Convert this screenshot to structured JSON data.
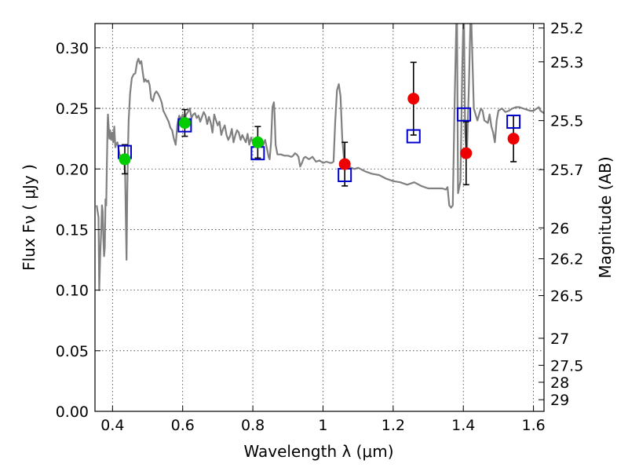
{
  "chart_data": {
    "type": "scatter",
    "xlabel": "Wavelength  λ (μm)",
    "ylabel_left": "Flux  Fν  ( μJy )",
    "ylabel_right": "Magnitude (AB)",
    "xlim": [
      0.35,
      1.63
    ],
    "ylim": [
      0.0,
      0.32
    ],
    "grid": true,
    "x_ticks": [
      {
        "value": 0.4,
        "label": "0.4"
      },
      {
        "value": 0.6,
        "label": "0.6"
      },
      {
        "value": 0.8,
        "label": "0.8"
      },
      {
        "value": 1.0,
        "label": "1"
      },
      {
        "value": 1.2,
        "label": "1.2"
      },
      {
        "value": 1.4,
        "label": "1.4"
      },
      {
        "value": 1.6,
        "label": "1.6"
      }
    ],
    "y_ticks": [
      {
        "value": 0.0,
        "label": "0.00"
      },
      {
        "value": 0.05,
        "label": "0.05"
      },
      {
        "value": 0.1,
        "label": "0.10"
      },
      {
        "value": 0.15,
        "label": "0.15"
      },
      {
        "value": 0.2,
        "label": "0.20"
      },
      {
        "value": 0.25,
        "label": "0.25"
      },
      {
        "value": 0.3,
        "label": "0.30"
      }
    ],
    "right_ticks": [
      {
        "label": "25.2",
        "flux": 0.3163
      },
      {
        "label": "25.3",
        "flux": 0.2884
      },
      {
        "label": "25.5",
        "flux": 0.2399
      },
      {
        "label": "25.7",
        "flux": 0.1995
      },
      {
        "label": "26",
        "flux": 0.1514
      },
      {
        "label": "26.2",
        "flux": 0.1259
      },
      {
        "label": "26.5",
        "flux": 0.0955
      },
      {
        "label": "27",
        "flux": 0.0603
      },
      {
        "label": "27.5",
        "flux": 0.038
      },
      {
        "label": "28",
        "flux": 0.024
      },
      {
        "label": "29",
        "flux": 0.0096
      }
    ],
    "model_spectrum": {
      "color": "#808080",
      "points": [
        [
          0.355,
          0.17
        ],
        [
          0.36,
          0.16
        ],
        [
          0.362,
          0.1
        ],
        [
          0.365,
          0.13
        ],
        [
          0.368,
          0.15
        ],
        [
          0.37,
          0.17
        ],
        [
          0.372,
          0.165
        ],
        [
          0.374,
          0.142
        ],
        [
          0.376,
          0.128
        ],
        [
          0.378,
          0.135
        ],
        [
          0.38,
          0.175
        ],
        [
          0.382,
          0.17
        ],
        [
          0.384,
          0.205
        ],
        [
          0.386,
          0.238
        ],
        [
          0.387,
          0.245
        ],
        [
          0.389,
          0.235
        ],
        [
          0.391,
          0.225
        ],
        [
          0.393,
          0.232
        ],
        [
          0.396,
          0.224
        ],
        [
          0.399,
          0.23
        ],
        [
          0.402,
          0.222
        ],
        [
          0.405,
          0.235
        ],
        [
          0.408,
          0.218
        ],
        [
          0.411,
          0.221
        ],
        [
          0.414,
          0.222
        ],
        [
          0.417,
          0.217
        ],
        [
          0.42,
          0.212
        ],
        [
          0.425,
          0.21
        ],
        [
          0.43,
          0.21
        ],
        [
          0.433,
          0.207
        ],
        [
          0.436,
          0.196
        ],
        [
          0.438,
          0.16
        ],
        [
          0.44,
          0.125
        ],
        [
          0.442,
          0.18
        ],
        [
          0.444,
          0.215
        ],
        [
          0.446,
          0.24
        ],
        [
          0.45,
          0.262
        ],
        [
          0.455,
          0.275
        ],
        [
          0.46,
          0.278
        ],
        [
          0.465,
          0.279
        ],
        [
          0.47,
          0.288
        ],
        [
          0.474,
          0.291
        ],
        [
          0.478,
          0.287
        ],
        [
          0.482,
          0.289
        ],
        [
          0.486,
          0.28
        ],
        [
          0.49,
          0.272
        ],
        [
          0.494,
          0.274
        ],
        [
          0.498,
          0.272
        ],
        [
          0.502,
          0.273
        ],
        [
          0.506,
          0.269
        ],
        [
          0.51,
          0.258
        ],
        [
          0.515,
          0.256
        ],
        [
          0.52,
          0.262
        ],
        [
          0.525,
          0.264
        ],
        [
          0.53,
          0.262
        ],
        [
          0.535,
          0.259
        ],
        [
          0.54,
          0.255
        ],
        [
          0.545,
          0.248
        ],
        [
          0.55,
          0.245
        ],
        [
          0.555,
          0.242
        ],
        [
          0.56,
          0.239
        ],
        [
          0.565,
          0.234
        ],
        [
          0.57,
          0.232
        ],
        [
          0.575,
          0.225
        ],
        [
          0.58,
          0.22
        ],
        [
          0.585,
          0.237
        ],
        [
          0.59,
          0.244
        ],
        [
          0.595,
          0.241
        ],
        [
          0.6,
          0.245
        ],
        [
          0.605,
          0.24
        ],
        [
          0.61,
          0.245
        ],
        [
          0.615,
          0.247
        ],
        [
          0.62,
          0.25
        ],
        [
          0.625,
          0.242
        ],
        [
          0.63,
          0.245
        ],
        [
          0.635,
          0.246
        ],
        [
          0.64,
          0.242
        ],
        [
          0.645,
          0.244
        ],
        [
          0.65,
          0.239
        ],
        [
          0.655,
          0.243
        ],
        [
          0.66,
          0.247
        ],
        [
          0.665,
          0.244
        ],
        [
          0.67,
          0.237
        ],
        [
          0.675,
          0.243
        ],
        [
          0.68,
          0.238
        ],
        [
          0.685,
          0.23
        ],
        [
          0.69,
          0.245
        ],
        [
          0.695,
          0.24
        ],
        [
          0.7,
          0.236
        ],
        [
          0.705,
          0.239
        ],
        [
          0.71,
          0.228
        ],
        [
          0.715,
          0.233
        ],
        [
          0.72,
          0.236
        ],
        [
          0.725,
          0.228
        ],
        [
          0.73,
          0.224
        ],
        [
          0.735,
          0.227
        ],
        [
          0.74,
          0.233
        ],
        [
          0.745,
          0.222
        ],
        [
          0.75,
          0.228
        ],
        [
          0.755,
          0.232
        ],
        [
          0.76,
          0.23
        ],
        [
          0.765,
          0.224
        ],
        [
          0.77,
          0.228
        ],
        [
          0.775,
          0.225
        ],
        [
          0.78,
          0.222
        ],
        [
          0.785,
          0.229
        ],
        [
          0.79,
          0.22
        ],
        [
          0.795,
          0.226
        ],
        [
          0.8,
          0.222
        ],
        [
          0.805,
          0.225
        ],
        [
          0.81,
          0.219
        ],
        [
          0.815,
          0.222
        ],
        [
          0.82,
          0.22
        ],
        [
          0.825,
          0.218
        ],
        [
          0.83,
          0.22
        ],
        [
          0.835,
          0.224
        ],
        [
          0.84,
          0.217
        ],
        [
          0.845,
          0.21
        ],
        [
          0.848,
          0.208
        ],
        [
          0.852,
          0.222
        ],
        [
          0.856,
          0.251
        ],
        [
          0.86,
          0.255
        ],
        [
          0.862,
          0.245
        ],
        [
          0.865,
          0.22
        ],
        [
          0.87,
          0.212
        ],
        [
          0.88,
          0.212
        ],
        [
          0.89,
          0.211
        ],
        [
          0.9,
          0.211
        ],
        [
          0.91,
          0.21
        ],
        [
          0.915,
          0.211
        ],
        [
          0.92,
          0.213
        ],
        [
          0.925,
          0.212
        ],
        [
          0.93,
          0.21
        ],
        [
          0.935,
          0.202
        ],
        [
          0.94,
          0.205
        ],
        [
          0.945,
          0.209
        ],
        [
          0.95,
          0.21
        ],
        [
          0.96,
          0.208
        ],
        [
          0.97,
          0.21
        ],
        [
          0.975,
          0.208
        ],
        [
          0.98,
          0.206
        ],
        [
          0.99,
          0.207
        ],
        [
          1.0,
          0.205
        ],
        [
          1.01,
          0.206
        ],
        [
          1.02,
          0.205
        ],
        [
          1.025,
          0.205
        ],
        [
          1.03,
          0.206
        ],
        [
          1.035,
          0.24
        ],
        [
          1.04,
          0.265
        ],
        [
          1.045,
          0.27
        ],
        [
          1.05,
          0.26
        ],
        [
          1.055,
          0.225
        ],
        [
          1.06,
          0.208
        ],
        [
          1.065,
          0.204
        ],
        [
          1.07,
          0.203
        ],
        [
          1.08,
          0.201
        ],
        [
          1.09,
          0.2
        ],
        [
          1.1,
          0.201
        ],
        [
          1.12,
          0.198
        ],
        [
          1.14,
          0.196
        ],
        [
          1.16,
          0.195
        ],
        [
          1.18,
          0.192
        ],
        [
          1.2,
          0.19
        ],
        [
          1.22,
          0.189
        ],
        [
          1.24,
          0.187
        ],
        [
          1.26,
          0.189
        ],
        [
          1.28,
          0.186
        ],
        [
          1.3,
          0.184
        ],
        [
          1.32,
          0.184
        ],
        [
          1.34,
          0.184
        ],
        [
          1.35,
          0.183
        ],
        [
          1.355,
          0.185
        ],
        [
          1.36,
          0.17
        ],
        [
          1.365,
          0.168
        ],
        [
          1.37,
          0.17
        ],
        [
          1.375,
          0.25
        ],
        [
          1.38,
          0.32
        ],
        [
          1.382,
          0.32
        ],
        [
          1.385,
          0.18
        ],
        [
          1.392,
          0.19
        ],
        [
          1.397,
          0.285
        ],
        [
          1.4,
          0.32
        ],
        [
          1.402,
          0.32
        ],
        [
          1.405,
          0.23
        ],
        [
          1.41,
          0.21
        ],
        [
          1.416,
          0.27
        ],
        [
          1.42,
          0.32
        ],
        [
          1.423,
          0.32
        ],
        [
          1.43,
          0.25
        ],
        [
          1.44,
          0.24
        ],
        [
          1.45,
          0.25
        ],
        [
          1.455,
          0.248
        ],
        [
          1.46,
          0.24
        ],
        [
          1.47,
          0.238
        ],
        [
          1.475,
          0.245
        ],
        [
          1.48,
          0.235
        ],
        [
          1.485,
          0.23
        ],
        [
          1.49,
          0.222
        ],
        [
          1.495,
          0.24
        ],
        [
          1.5,
          0.248
        ],
        [
          1.51,
          0.25
        ],
        [
          1.52,
          0.247
        ],
        [
          1.53,
          0.248
        ],
        [
          1.54,
          0.25
        ],
        [
          1.55,
          0.251
        ],
        [
          1.56,
          0.251
        ],
        [
          1.57,
          0.25
        ],
        [
          1.58,
          0.249
        ],
        [
          1.59,
          0.248
        ],
        [
          1.6,
          0.248
        ],
        [
          1.61,
          0.25
        ],
        [
          1.615,
          0.251
        ],
        [
          1.62,
          0.248
        ],
        [
          1.63,
          0.246
        ]
      ]
    },
    "model_photometry": {
      "color": "#0000cc",
      "points": [
        {
          "x": 0.435,
          "y": 0.214
        },
        {
          "x": 0.606,
          "y": 0.236
        },
        {
          "x": 0.814,
          "y": 0.213
        },
        {
          "x": 1.062,
          "y": 0.195
        },
        {
          "x": 1.258,
          "y": 0.227
        },
        {
          "x": 1.402,
          "y": 0.245
        },
        {
          "x": 1.543,
          "y": 0.239
        }
      ]
    },
    "observed_optical": {
      "color": "#00cc00",
      "points": [
        {
          "x": 0.435,
          "y": 0.208,
          "err": 0.012
        },
        {
          "x": 0.606,
          "y": 0.238,
          "err": 0.011
        },
        {
          "x": 0.814,
          "y": 0.222,
          "err": 0.013
        }
      ]
    },
    "observed_infrared": {
      "color": "#ee0000",
      "points": [
        {
          "x": 1.062,
          "y": 0.204,
          "err": 0.018
        },
        {
          "x": 1.258,
          "y": 0.258,
          "err": 0.03
        },
        {
          "x": 1.408,
          "y": 0.213,
          "err": 0.026
        },
        {
          "x": 1.543,
          "y": 0.225,
          "err": 0.019
        }
      ]
    }
  }
}
